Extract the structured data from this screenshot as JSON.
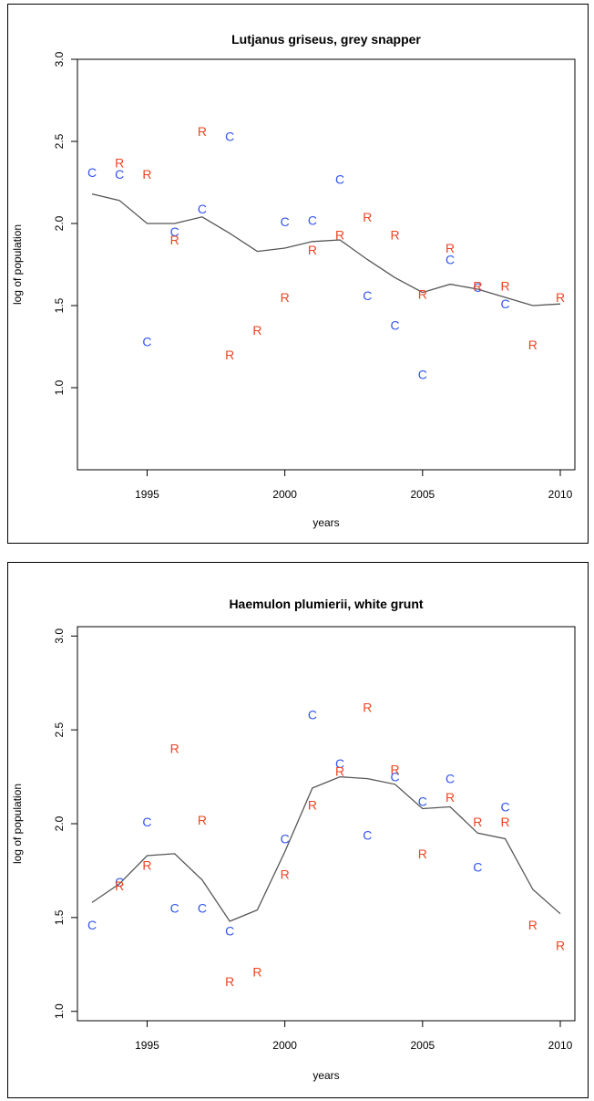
{
  "chart_data": [
    {
      "type": "scatter",
      "title": "Lutjanus griseus, grey snapper",
      "xlabel": "years",
      "ylabel": "log of population",
      "xlim": [
        1993,
        2010
      ],
      "ylim": [
        0.5,
        3.0
      ],
      "x_ticks": [
        1995,
        2000,
        2005,
        2010
      ],
      "y_ticks": [
        1.0,
        1.5,
        2.0,
        2.5,
        3.0
      ],
      "y_tick_labels": [
        "1.0",
        "1.5",
        "2.0",
        "2.5",
        "3.0"
      ],
      "grid": false,
      "colors": {
        "C": "#3355ee",
        "R": "#ee4422",
        "line": "#555555"
      },
      "series": [
        {
          "name": "C",
          "points": [
            {
              "x": 1993,
              "y": 2.31
            },
            {
              "x": 1994,
              "y": 2.3
            },
            {
              "x": 1995,
              "y": 1.28
            },
            {
              "x": 1996,
              "y": 1.95
            },
            {
              "x": 1997,
              "y": 2.09
            },
            {
              "x": 1998,
              "y": 2.53
            },
            {
              "x": 2000,
              "y": 2.01
            },
            {
              "x": 2001,
              "y": 2.02
            },
            {
              "x": 2002,
              "y": 2.27
            },
            {
              "x": 2003,
              "y": 1.56
            },
            {
              "x": 2004,
              "y": 1.38
            },
            {
              "x": 2005,
              "y": 1.08
            },
            {
              "x": 2006,
              "y": 1.78
            },
            {
              "x": 2007,
              "y": 1.61
            },
            {
              "x": 2008,
              "y": 1.51
            }
          ]
        },
        {
          "name": "R",
          "points": [
            {
              "x": 1994,
              "y": 2.37
            },
            {
              "x": 1995,
              "y": 2.3
            },
            {
              "x": 1996,
              "y": 1.9
            },
            {
              "x": 1997,
              "y": 2.56
            },
            {
              "x": 1998,
              "y": 1.2
            },
            {
              "x": 1999,
              "y": 1.35
            },
            {
              "x": 2000,
              "y": 1.55
            },
            {
              "x": 2001,
              "y": 1.84
            },
            {
              "x": 2002,
              "y": 1.93
            },
            {
              "x": 2003,
              "y": 2.04
            },
            {
              "x": 2004,
              "y": 1.93
            },
            {
              "x": 2005,
              "y": 1.57
            },
            {
              "x": 2006,
              "y": 1.85
            },
            {
              "x": 2007,
              "y": 1.62
            },
            {
              "x": 2008,
              "y": 1.62
            },
            {
              "x": 2009,
              "y": 1.26
            },
            {
              "x": 2010,
              "y": 1.55
            }
          ]
        }
      ],
      "line": {
        "x": [
          1993,
          1994,
          1995,
          1996,
          1997,
          1998,
          1999,
          2000,
          2001,
          2002,
          2003,
          2004,
          2005,
          2006,
          2007,
          2008,
          2009,
          2010
        ],
        "y": [
          2.18,
          2.14,
          2.0,
          2.0,
          2.04,
          1.94,
          1.83,
          1.85,
          1.89,
          1.9,
          1.78,
          1.67,
          1.58,
          1.63,
          1.6,
          1.55,
          1.5,
          1.51
        ]
      }
    },
    {
      "type": "scatter",
      "title": "Haemulon plumierii, white grunt",
      "xlabel": "years",
      "ylabel": "log of population",
      "xlim": [
        1993,
        2010
      ],
      "ylim": [
        0.95,
        3.05
      ],
      "x_ticks": [
        1995,
        2000,
        2005,
        2010
      ],
      "y_ticks": [
        1.0,
        1.5,
        2.0,
        2.5,
        3.0
      ],
      "y_tick_labels": [
        "1.0",
        "1.5",
        "2.0",
        "2.5",
        "3.0"
      ],
      "grid": false,
      "colors": {
        "C": "#3355ee",
        "R": "#ee4422",
        "line": "#555555"
      },
      "series": [
        {
          "name": "C",
          "points": [
            {
              "x": 1993,
              "y": 1.46
            },
            {
              "x": 1994,
              "y": 1.69
            },
            {
              "x": 1995,
              "y": 2.01
            },
            {
              "x": 1996,
              "y": 1.55
            },
            {
              "x": 1997,
              "y": 1.55
            },
            {
              "x": 1998,
              "y": 1.43
            },
            {
              "x": 2000,
              "y": 1.92
            },
            {
              "x": 2001,
              "y": 2.58
            },
            {
              "x": 2002,
              "y": 2.32
            },
            {
              "x": 2003,
              "y": 1.94
            },
            {
              "x": 2004,
              "y": 2.25
            },
            {
              "x": 2005,
              "y": 2.12
            },
            {
              "x": 2006,
              "y": 2.24
            },
            {
              "x": 2007,
              "y": 1.77
            },
            {
              "x": 2008,
              "y": 2.09
            }
          ]
        },
        {
          "name": "R",
          "points": [
            {
              "x": 1994,
              "y": 1.67
            },
            {
              "x": 1995,
              "y": 1.78
            },
            {
              "x": 1996,
              "y": 2.4
            },
            {
              "x": 1997,
              "y": 2.02
            },
            {
              "x": 1998,
              "y": 1.16
            },
            {
              "x": 1999,
              "y": 1.21
            },
            {
              "x": 2000,
              "y": 1.73
            },
            {
              "x": 2001,
              "y": 2.1
            },
            {
              "x": 2002,
              "y": 2.28
            },
            {
              "x": 2003,
              "y": 2.62
            },
            {
              "x": 2004,
              "y": 2.29
            },
            {
              "x": 2005,
              "y": 1.84
            },
            {
              "x": 2006,
              "y": 2.14
            },
            {
              "x": 2007,
              "y": 2.01
            },
            {
              "x": 2008,
              "y": 2.01
            },
            {
              "x": 2009,
              "y": 1.46
            },
            {
              "x": 2010,
              "y": 1.35
            }
          ]
        }
      ],
      "line": {
        "x": [
          1993,
          1994,
          1995,
          1996,
          1997,
          1998,
          1999,
          2000,
          2001,
          2002,
          2003,
          2004,
          2005,
          2006,
          2007,
          2008,
          2009,
          2010
        ],
        "y": [
          1.58,
          1.68,
          1.83,
          1.84,
          1.7,
          1.48,
          1.54,
          1.85,
          2.19,
          2.25,
          2.24,
          2.21,
          2.08,
          2.09,
          1.95,
          1.92,
          1.65,
          1.52
        ]
      }
    }
  ]
}
